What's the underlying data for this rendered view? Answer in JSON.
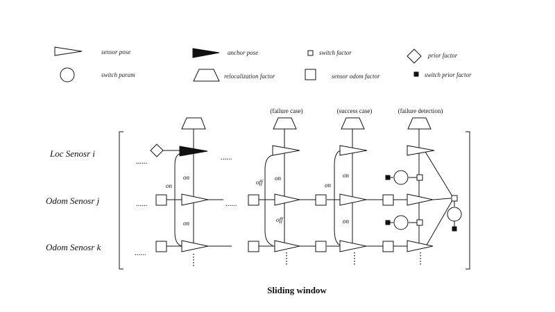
{
  "legend": {
    "sensor_pose": "sensor pose",
    "anchor_pose": "anchor pose",
    "switch_factor": "switch factor",
    "prior_factor": "prior factor",
    "switch_param": "switch param",
    "relocalization_factor": "relocalization factor",
    "sensor_odom_factor": "sensor odom factor",
    "switch_prior_factor": "switch prior factor"
  },
  "rows": {
    "loc_i": "Loc Senosr i",
    "odom_j": "Odom Senosr j",
    "odom_k": "Odom Senosr k"
  },
  "cases": {
    "failure": "(failure case)",
    "success": "(success case)",
    "detection": "(failure detection)"
  },
  "switch_states": {
    "on": "on",
    "off": "off"
  },
  "ellipsis": "......",
  "caption": "Sliding window"
}
